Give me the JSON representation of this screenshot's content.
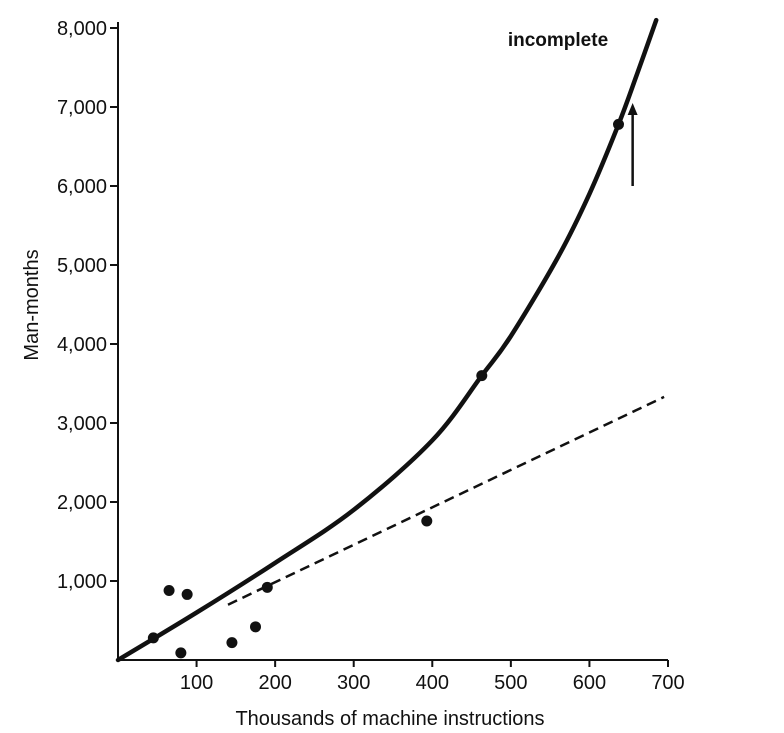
{
  "chart_data": {
    "type": "scatter",
    "xlabel": "Thousands of machine instructions",
    "ylabel": "Man-months",
    "xlim": [
      0,
      700
    ],
    "ylim": [
      0,
      8000
    ],
    "x_ticks": [
      {
        "value": 100,
        "label": "100"
      },
      {
        "value": 200,
        "label": "200"
      },
      {
        "value": 300,
        "label": "300"
      },
      {
        "value": 400,
        "label": "400"
      },
      {
        "value": 500,
        "label": "500"
      },
      {
        "value": 600,
        "label": "600"
      },
      {
        "value": 700,
        "label": "700"
      }
    ],
    "y_ticks": [
      {
        "value": 1000,
        "label": "1,000"
      },
      {
        "value": 2000,
        "label": "2,000"
      },
      {
        "value": 3000,
        "label": "3,000"
      },
      {
        "value": 4000,
        "label": "4,000"
      },
      {
        "value": 5000,
        "label": "5,000"
      },
      {
        "value": 6000,
        "label": "6,000"
      },
      {
        "value": 7000,
        "label": "7,000"
      },
      {
        "value": 8000,
        "label": "8,000"
      }
    ],
    "grid": false,
    "series": [
      {
        "style": "points",
        "points": [
          {
            "x": 45,
            "y": 280
          },
          {
            "x": 65,
            "y": 880
          },
          {
            "x": 80,
            "y": 90
          },
          {
            "x": 88,
            "y": 830
          },
          {
            "x": 145,
            "y": 220
          },
          {
            "x": 175,
            "y": 420
          },
          {
            "x": 190,
            "y": 920
          },
          {
            "x": 393,
            "y": 1760
          },
          {
            "x": 463,
            "y": 3600
          },
          {
            "x": 637,
            "y": 6780
          }
        ]
      },
      {
        "style": "solid-curve",
        "points": [
          {
            "x": 0,
            "y": 0
          },
          {
            "x": 100,
            "y": 600
          },
          {
            "x": 200,
            "y": 1230
          },
          {
            "x": 300,
            "y": 1900
          },
          {
            "x": 400,
            "y": 2780
          },
          {
            "x": 463,
            "y": 3600
          },
          {
            "x": 500,
            "y": 4100
          },
          {
            "x": 560,
            "y": 5100
          },
          {
            "x": 600,
            "y": 5900
          },
          {
            "x": 637,
            "y": 6780
          },
          {
            "x": 660,
            "y": 7400
          },
          {
            "x": 685,
            "y": 8100
          }
        ]
      },
      {
        "style": "dashed-line",
        "points": [
          {
            "x": 140,
            "y": 700
          },
          {
            "x": 695,
            "y": 3330
          }
        ]
      }
    ],
    "annotations": [
      {
        "text": "incomplete",
        "x": 560,
        "y": 7850
      },
      {
        "text": "↑",
        "x": 655,
        "y": 6300
      }
    ]
  }
}
